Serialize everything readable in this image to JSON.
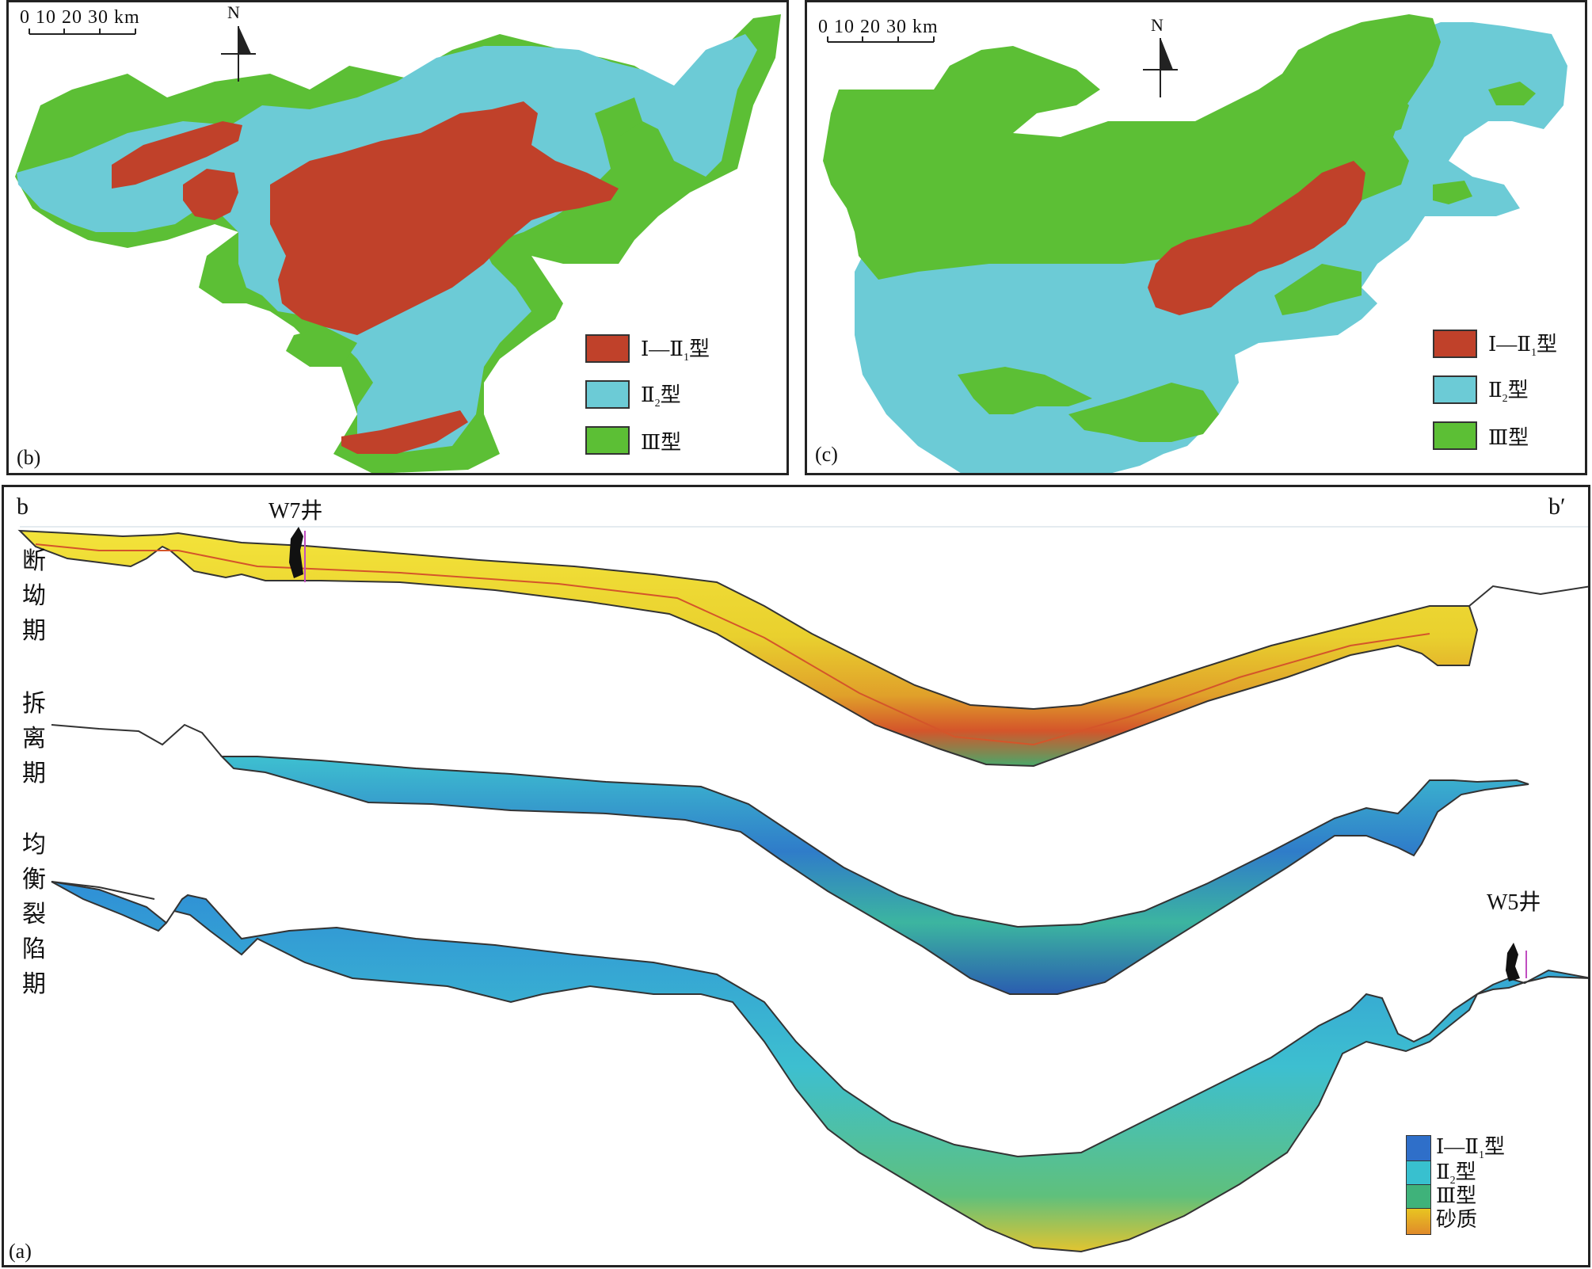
{
  "panel_b": {
    "label": "(b)",
    "scale": "0  10 20 30 km",
    "north": "N",
    "legend": [
      {
        "label": "Ⅰ—Ⅱ",
        "sub": "1",
        "suffix": "型",
        "color": "#c0412a"
      },
      {
        "label": "Ⅱ",
        "sub": "2",
        "suffix": "型",
        "color": "#6ccbd6"
      },
      {
        "label": "Ⅲ型",
        "sub": "",
        "suffix": "",
        "color": "#5cbf35"
      }
    ]
  },
  "panel_c": {
    "label": "(c)",
    "scale": "0  10 20 30 km",
    "north": "N",
    "legend": [
      {
        "label": "Ⅰ—Ⅱ",
        "sub": "1",
        "suffix": "型",
        "color": "#c0412a"
      },
      {
        "label": "Ⅱ",
        "sub": "2",
        "suffix": "型",
        "color": "#6ccbd6"
      },
      {
        "label": "Ⅲ型",
        "sub": "",
        "suffix": "",
        "color": "#5cbf35"
      }
    ]
  },
  "panel_a": {
    "label": "(a)",
    "left_end": "b",
    "right_end": "b′",
    "wells": [
      "W7井",
      "W5井"
    ],
    "periods": [
      "断坳期",
      "拆离期",
      "均衡裂陷期"
    ],
    "colorbar": [
      {
        "label": "Ⅰ—Ⅱ",
        "sub": "1",
        "suffix": "型",
        "color": "#2f6fc9"
      },
      {
        "label": "Ⅱ",
        "sub": "2",
        "suffix": "型",
        "color": "#38c0cf"
      },
      {
        "label": "Ⅲ型",
        "sub": "",
        "suffix": "",
        "color": "#3fb27a"
      },
      {
        "label": "砂质",
        "sub": "",
        "suffix": "",
        "color": "#e8c521"
      }
    ]
  }
}
